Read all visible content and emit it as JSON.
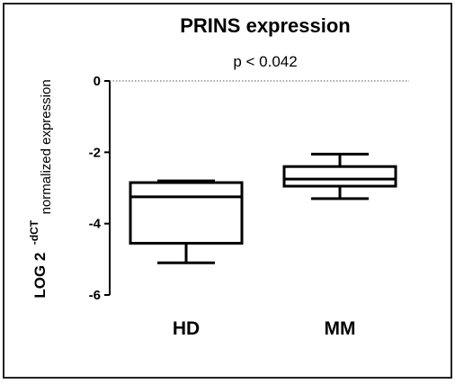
{
  "chart_data": {
    "type": "boxplot",
    "title": "PRINS expression",
    "subtitle": "p < 0.042",
    "ylabel": {
      "base": "LOG 2",
      "superscript": "-dCT",
      "subscript": "normalized expression"
    },
    "xlabel": "",
    "ylim": [
      -6,
      0
    ],
    "yticks": [
      0,
      -2,
      -4,
      -6
    ],
    "reference_line": 0,
    "categories": [
      "HD",
      "MM"
    ],
    "series": [
      {
        "category": "HD",
        "min": -5.1,
        "q1": -4.55,
        "median": -3.25,
        "q3": -2.85,
        "max": -2.8
      },
      {
        "category": "MM",
        "min": -3.3,
        "q1": -2.95,
        "median": -2.75,
        "q3": -2.4,
        "max": -2.05
      }
    ],
    "grid": false,
    "legend": "none"
  },
  "colors": {
    "stroke": "#000000",
    "reference_line": "#555555",
    "frame": "#222222"
  }
}
